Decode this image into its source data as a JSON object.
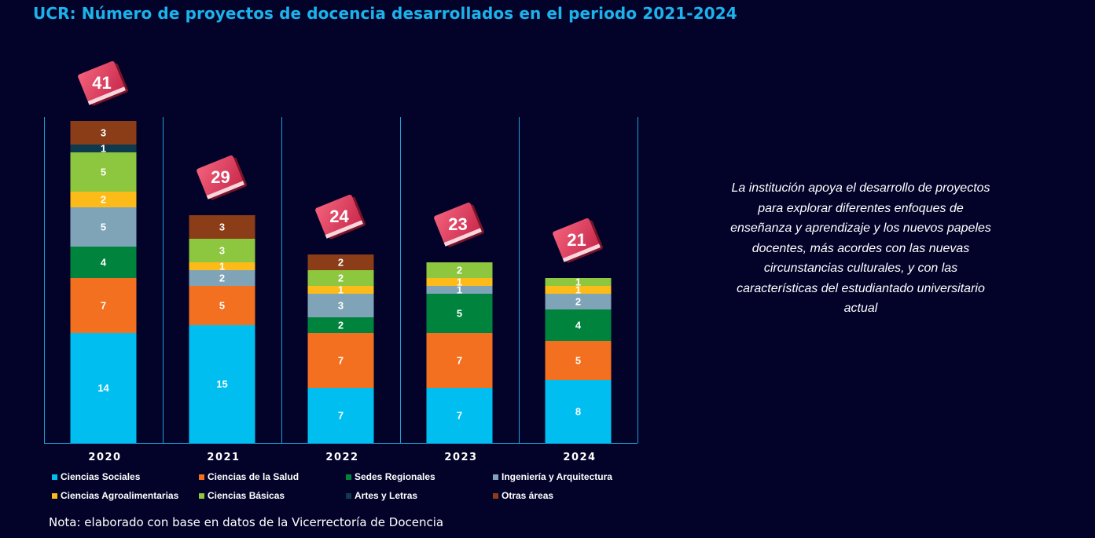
{
  "title": "UCR: Número de proyectos de docencia desarrollados en el periodo 2021-2024",
  "side_text": "La institución apoya el desarrollo de proyectos para explorar diferentes enfoques de enseñanza y aprendizaje y los nuevos papeles docentes, más acordes con las nuevas circunstancias culturales, y con las características del estudiantado universitario actual",
  "note": "Nota: elaborado con base en datos de la Vicerrectoría de Docencia",
  "chart_data": {
    "type": "bar",
    "stacked": true,
    "categories": [
      "2020",
      "2021",
      "2022",
      "2023",
      "2024"
    ],
    "totals": [
      41,
      29,
      24,
      23,
      21
    ],
    "ylim": [
      0,
      41
    ],
    "legend_position": "bottom",
    "series": [
      {
        "name": "Ciencias Sociales",
        "color": "#00bff0",
        "values": [
          14,
          15,
          7,
          7,
          8
        ]
      },
      {
        "name": "Ciencias de la Salud",
        "color": "#f37021",
        "values": [
          7,
          5,
          7,
          7,
          5
        ]
      },
      {
        "name": "Sedes Regionales",
        "color": "#00843d",
        "values": [
          4,
          0,
          2,
          5,
          4
        ]
      },
      {
        "name": "Ingeniería y Arquitectura",
        "color": "#7fa4b8",
        "values": [
          5,
          2,
          3,
          1,
          2
        ]
      },
      {
        "name": "Ciencias Agroalimentarias",
        "color": "#fdbb1a",
        "values": [
          2,
          1,
          1,
          1,
          1
        ]
      },
      {
        "name": "Ciencias Básicas",
        "color": "#8dc63f",
        "values": [
          5,
          3,
          2,
          2,
          1
        ]
      },
      {
        "name": "Artes y Letras",
        "color": "#0f3a4e",
        "values": [
          1,
          0,
          0,
          0,
          0
        ]
      },
      {
        "name": "Otras áreas",
        "color": "#8b3d17",
        "values": [
          3,
          3,
          2,
          0,
          0
        ]
      }
    ]
  }
}
